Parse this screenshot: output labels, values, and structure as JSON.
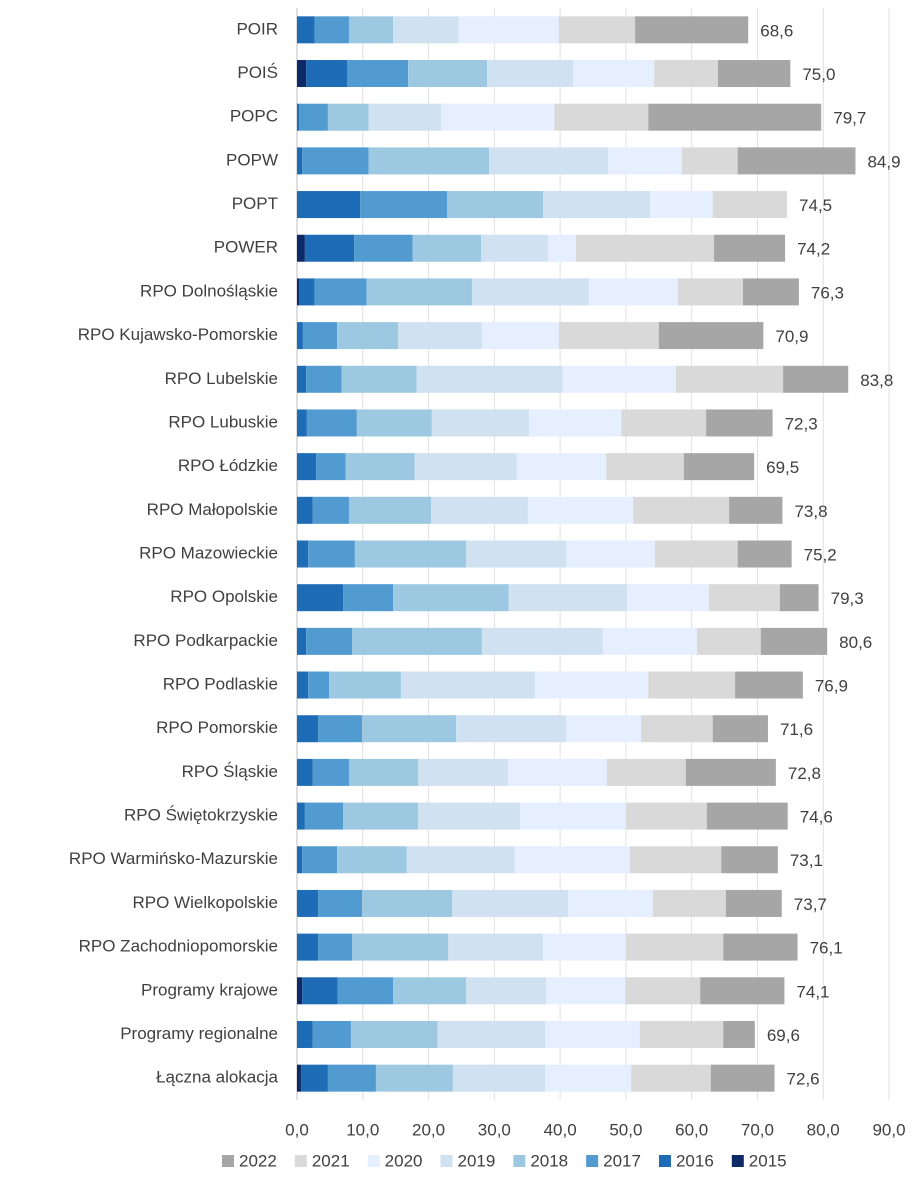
{
  "chart_data": {
    "type": "stacked-bar-horizontal",
    "categories": [
      "POIR",
      "POIŚ",
      "POPC",
      "POPW",
      "POPT",
      "POWER",
      "RPO Dolnośląskie",
      "RPO Kujawsko-Pomorskie",
      "RPO Lubelskie",
      "RPO Lubuskie",
      "RPO Łódzkie",
      "RPO Małopolskie",
      "RPO Mazowieckie",
      "RPO Opolskie",
      "RPO Podkarpackie",
      "RPO Podlaskie",
      "RPO Pomorskie",
      "RPO Śląskie",
      "RPO Świętokrzyskie",
      "RPO Warmińsko-Mazurskie",
      "RPO Wielkopolskie",
      "RPO Zachodniopomorskie",
      "Programy krajowe",
      "Programy regionalne",
      "Łączna alokacja"
    ],
    "series": [
      {
        "name": "2015",
        "color": "#0e2a66",
        "values": [
          0,
          1.4,
          0,
          0,
          0,
          1.2,
          0.3,
          0,
          0,
          0,
          0,
          0,
          0,
          0,
          0,
          0,
          0,
          0,
          0,
          0,
          0,
          0,
          0.8,
          0,
          0.6
        ]
      },
      {
        "name": "2016",
        "color": "#1f6cb6",
        "values": [
          2.7,
          6.2,
          0.3,
          0.8,
          9.6,
          7.5,
          2.4,
          0.9,
          1.4,
          1.5,
          2.9,
          2.4,
          1.7,
          7.0,
          1.4,
          1.7,
          3.2,
          2.4,
          1.2,
          0.8,
          3.2,
          3.2,
          5.4,
          2.4,
          4.1
        ]
      },
      {
        "name": "2017",
        "color": "#519bd1",
        "values": [
          5.2,
          9.3,
          4.4,
          10.1,
          13.2,
          8.9,
          7.9,
          5.2,
          5.4,
          7.6,
          4.5,
          5.5,
          7.1,
          7.6,
          7.0,
          3.2,
          6.7,
          5.5,
          5.8,
          5.3,
          6.7,
          5.2,
          8.4,
          5.8,
          7.3
        ]
      },
      {
        "name": "2018",
        "color": "#9dc8e1",
        "values": [
          6.7,
          12.0,
          6.2,
          18.3,
          14.6,
          10.4,
          16.0,
          9.3,
          11.4,
          11.4,
          10.5,
          12.5,
          16.9,
          17.6,
          19.7,
          10.9,
          14.3,
          10.5,
          11.4,
          10.6,
          13.7,
          14.6,
          11.1,
          13.2,
          11.7
        ]
      },
      {
        "name": "2019",
        "color": "#d0e1f1",
        "values": [
          10.0,
          13.1,
          11.0,
          18.1,
          16.3,
          10.2,
          17.8,
          12.7,
          22.2,
          14.8,
          15.5,
          14.7,
          15.3,
          18.0,
          18.4,
          20.4,
          16.7,
          13.7,
          15.5,
          16.4,
          17.6,
          14.4,
          12.2,
          16.3,
          14.0
        ]
      },
      {
        "name": "2020",
        "color": "#e6efff",
        "values": [
          15.2,
          12.3,
          17.2,
          11.2,
          9.5,
          4.2,
          13.5,
          11.7,
          17.2,
          14.0,
          13.6,
          16.0,
          13.4,
          12.4,
          14.3,
          17.2,
          11.4,
          15.0,
          16.1,
          17.5,
          12.9,
          12.6,
          12.0,
          14.4,
          13.1
        ]
      },
      {
        "name": "2021",
        "color": "#d9d9d9",
        "values": [
          11.6,
          9.7,
          14.3,
          8.5,
          11.3,
          21.0,
          9.9,
          15.2,
          16.3,
          12.9,
          11.8,
          14.6,
          12.6,
          10.8,
          9.7,
          13.2,
          10.9,
          12.0,
          12.3,
          13.9,
          11.1,
          14.8,
          11.4,
          12.7,
          12.1
        ]
      },
      {
        "name": "2022",
        "color": "#a6a6a6",
        "values": [
          17.2,
          11.0,
          26.3,
          17.9,
          0,
          10.8,
          8.5,
          15.9,
          9.9,
          10.1,
          10.7,
          8.1,
          8.2,
          5.9,
          10.1,
          10.3,
          8.4,
          13.7,
          12.3,
          8.6,
          8.5,
          11.3,
          12.8,
          4.8,
          9.7
        ]
      }
    ],
    "totals": [
      68.6,
      75.0,
      79.7,
      84.9,
      74.5,
      74.2,
      76.3,
      70.9,
      83.8,
      72.3,
      69.5,
      73.8,
      75.2,
      79.3,
      80.6,
      76.9,
      71.6,
      72.8,
      74.6,
      73.1,
      73.7,
      76.1,
      74.1,
      69.6,
      72.6
    ],
    "total_labels": [
      "68,6",
      "75,0",
      "79,7",
      "84,9",
      "74,5",
      "74,2",
      "76,3",
      "70,9",
      "83,8",
      "72,3",
      "69,5",
      "73,8",
      "75,2",
      "79,3",
      "80,6",
      "76,9",
      "71,6",
      "72,8",
      "74,6",
      "73,1",
      "73,7",
      "76,1",
      "74,1",
      "69,6",
      "72,6"
    ],
    "xlim": [
      0,
      90
    ],
    "xticks": [
      {
        "value": 0,
        "label": "0,0"
      },
      {
        "value": 10,
        "label": "10,0"
      },
      {
        "value": 20,
        "label": "20,0"
      },
      {
        "value": 30,
        "label": "30,0"
      },
      {
        "value": 40,
        "label": "40,0"
      },
      {
        "value": 50,
        "label": "50,0"
      },
      {
        "value": 60,
        "label": "60,0"
      },
      {
        "value": 70,
        "label": "70,0"
      },
      {
        "value": 80,
        "label": "80,0"
      },
      {
        "value": 90,
        "label": "90,0"
      }
    ],
    "grid": true,
    "legend": "bottom"
  }
}
